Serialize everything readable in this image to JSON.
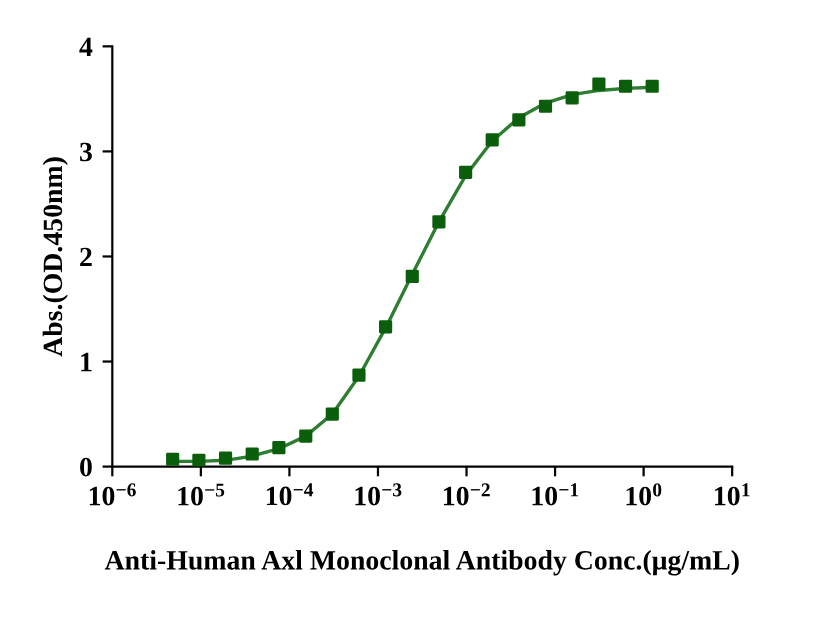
{
  "chart_data": {
    "type": "scatter",
    "log": "x",
    "marker": "square",
    "grid": false,
    "legend": false,
    "xlabel": "Anti-Human Axl Monoclonal Antibody Conc.(μg/mL)",
    "ylabel": "Abs.(OD.450nm)",
    "x": [
      4.8e-06,
      9.5e-06,
      1.9e-05,
      3.8e-05,
      7.6e-05,
      0.000153,
      0.000305,
      0.00061,
      0.00122,
      0.00244,
      0.00488,
      0.00977,
      0.0195,
      0.039,
      0.078,
      0.156,
      0.3125,
      0.625,
      1.25
    ],
    "series": [
      {
        "color": "#0b5e0b",
        "values": [
          0.07,
          0.06,
          0.08,
          0.12,
          0.18,
          0.29,
          0.5,
          0.87,
          1.33,
          1.81,
          2.33,
          2.8,
          3.11,
          3.3,
          3.43,
          3.51,
          3.64,
          3.62,
          3.62
        ]
      },
      {
        "type": "line",
        "color": "#2e7d32",
        "marker": "none",
        "line_style": "solid",
        "values": [
          0.05,
          0.05,
          0.06,
          0.1,
          0.17,
          0.29,
          0.5,
          0.86,
          1.32,
          1.83,
          2.33,
          2.77,
          3.1,
          3.32,
          3.46,
          3.54,
          3.58,
          3.6,
          3.61
        ]
      }
    ],
    "xlim": [
      1e-06,
      10
    ],
    "ylim": [
      0,
      4
    ],
    "yticks": [
      0,
      1,
      2,
      3,
      4
    ],
    "xticks": [
      {
        "value": 1e-06,
        "label": "10$^{−6}$"
      },
      {
        "value": 1e-05,
        "label": "10$^{−5}$"
      },
      {
        "value": 0.0001,
        "label": "10$^{−4}$"
      },
      {
        "value": 0.001,
        "label": "10$^{−3}$"
      },
      {
        "value": 0.01,
        "label": "10$^{−2}$"
      },
      {
        "value": 0.1,
        "label": "10$^{−1}$"
      },
      {
        "value": 1,
        "label": "10$^{0}$"
      },
      {
        "value": 10,
        "label": "10$^{1}$"
      }
    ]
  }
}
